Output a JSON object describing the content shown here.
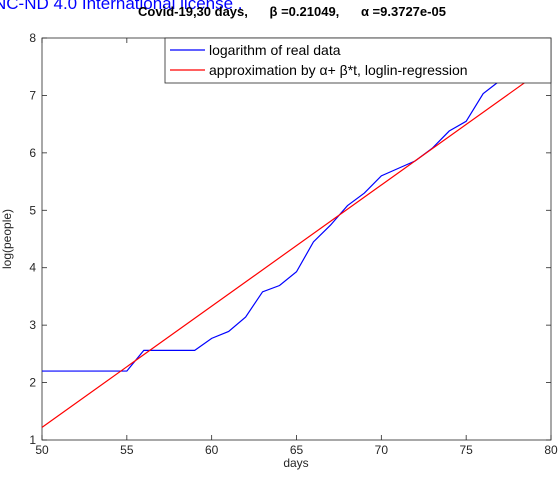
{
  "chart_data": {
    "type": "line",
    "annotation": "NC-ND 4.0 International license .",
    "title": "Covid-19,30 days,      β =0.21049,      α =9.3727e-05",
    "xlabel": "days",
    "ylabel": "log(people)",
    "xlim": [
      50,
      80
    ],
    "ylim": [
      1,
      8
    ],
    "xticks": [
      50,
      55,
      60,
      65,
      70,
      75,
      80
    ],
    "yticks": [
      1,
      2,
      3,
      4,
      5,
      6,
      7,
      8
    ],
    "legend": "top-right",
    "series": [
      {
        "name": "logarithm of real data",
        "color": "#0000ff",
        "x": [
          50,
          51,
          52,
          53,
          54,
          55,
          56,
          57,
          58,
          59,
          60,
          61,
          62,
          63,
          64,
          65,
          66,
          67,
          68,
          69,
          70,
          71,
          72,
          73,
          74,
          75,
          76,
          77,
          78,
          79,
          80
        ],
        "values": [
          2.2,
          2.2,
          2.2,
          2.2,
          2.2,
          2.2,
          2.56,
          2.56,
          2.56,
          2.56,
          2.77,
          2.89,
          3.14,
          3.58,
          3.69,
          3.93,
          4.45,
          4.74,
          5.08,
          5.3,
          5.6,
          5.73,
          5.86,
          6.08,
          6.38,
          6.55,
          7.03,
          7.26,
          7.45,
          7.58,
          7.85
        ]
      },
      {
        "name": "approximation by     α+ β*t, loglin-regression",
        "color": "#ff0000",
        "x": [
          50,
          80
        ],
        "values": [
          1.22,
          7.55
        ]
      }
    ]
  }
}
